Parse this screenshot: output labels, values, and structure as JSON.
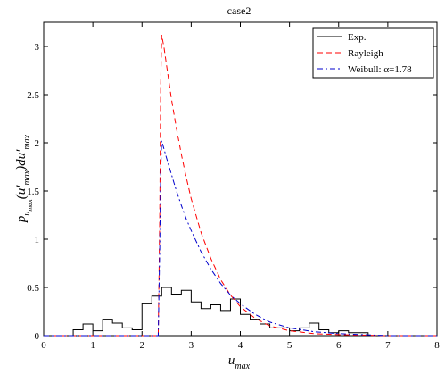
{
  "chart_data": {
    "type": "line",
    "title": "case2",
    "xlabel": "u_max",
    "ylabel": "p_u_max(u′_max) du′_max",
    "xlim": [
      0,
      8
    ],
    "ylim": [
      0,
      3.25
    ],
    "xticks": [
      0,
      1,
      2,
      3,
      4,
      5,
      6,
      7,
      8
    ],
    "yticks": [
      0,
      0.5,
      1,
      1.5,
      2,
      2.5,
      3
    ],
    "grid": false,
    "legend_position": "top-right",
    "series": [
      {
        "name": "Exp.",
        "style": "solid-step",
        "color": "#000000",
        "bin_edges": [
          0.0,
          0.6,
          0.8,
          1.0,
          1.2,
          1.4,
          1.6,
          1.8,
          2.0,
          2.2,
          2.4,
          2.6,
          2.8,
          3.0,
          3.2,
          3.4,
          3.6,
          3.8,
          4.0,
          4.2,
          4.4,
          4.6,
          4.8,
          5.0,
          5.2,
          5.4,
          5.6,
          5.8,
          6.0,
          6.2,
          6.4,
          6.6,
          8.0
        ],
        "values": [
          0.0,
          0.06,
          0.12,
          0.05,
          0.17,
          0.13,
          0.08,
          0.06,
          0.33,
          0.41,
          0.5,
          0.43,
          0.47,
          0.35,
          0.28,
          0.32,
          0.26,
          0.38,
          0.22,
          0.17,
          0.12,
          0.08,
          0.08,
          0.05,
          0.08,
          0.13,
          0.06,
          0.03,
          0.05,
          0.03,
          0.03,
          0.0
        ]
      },
      {
        "name": "Rayleigh",
        "style": "dashed",
        "color": "#ff0000",
        "x": [
          0.0,
          2.33,
          2.36,
          2.38,
          2.4,
          2.45,
          2.5,
          2.6,
          2.7,
          2.8,
          2.9,
          3.0,
          3.2,
          3.4,
          3.6,
          3.8,
          4.0,
          4.3,
          4.6,
          5.0,
          5.5,
          6.0,
          7.0,
          8.0
        ],
        "y": [
          0.0,
          0.0,
          1.2,
          2.6,
          3.12,
          2.98,
          2.8,
          2.45,
          2.15,
          1.88,
          1.64,
          1.42,
          1.07,
          0.8,
          0.58,
          0.42,
          0.3,
          0.18,
          0.1,
          0.05,
          0.02,
          0.01,
          0.0,
          0.0
        ]
      },
      {
        "name": "Weibull: α=1.78",
        "style": "dashdot",
        "color": "#0000cc",
        "x": [
          0.0,
          2.33,
          2.36,
          2.38,
          2.4,
          2.45,
          2.5,
          2.6,
          2.7,
          2.8,
          2.9,
          3.0,
          3.2,
          3.4,
          3.6,
          3.8,
          4.0,
          4.3,
          4.6,
          5.0,
          5.5,
          6.0,
          7.0,
          8.0
        ],
        "y": [
          0.0,
          0.0,
          0.9,
          1.7,
          2.02,
          1.93,
          1.84,
          1.67,
          1.5,
          1.35,
          1.21,
          1.09,
          0.87,
          0.69,
          0.54,
          0.42,
          0.33,
          0.22,
          0.14,
          0.08,
          0.04,
          0.02,
          0.0,
          0.0
        ]
      }
    ]
  }
}
